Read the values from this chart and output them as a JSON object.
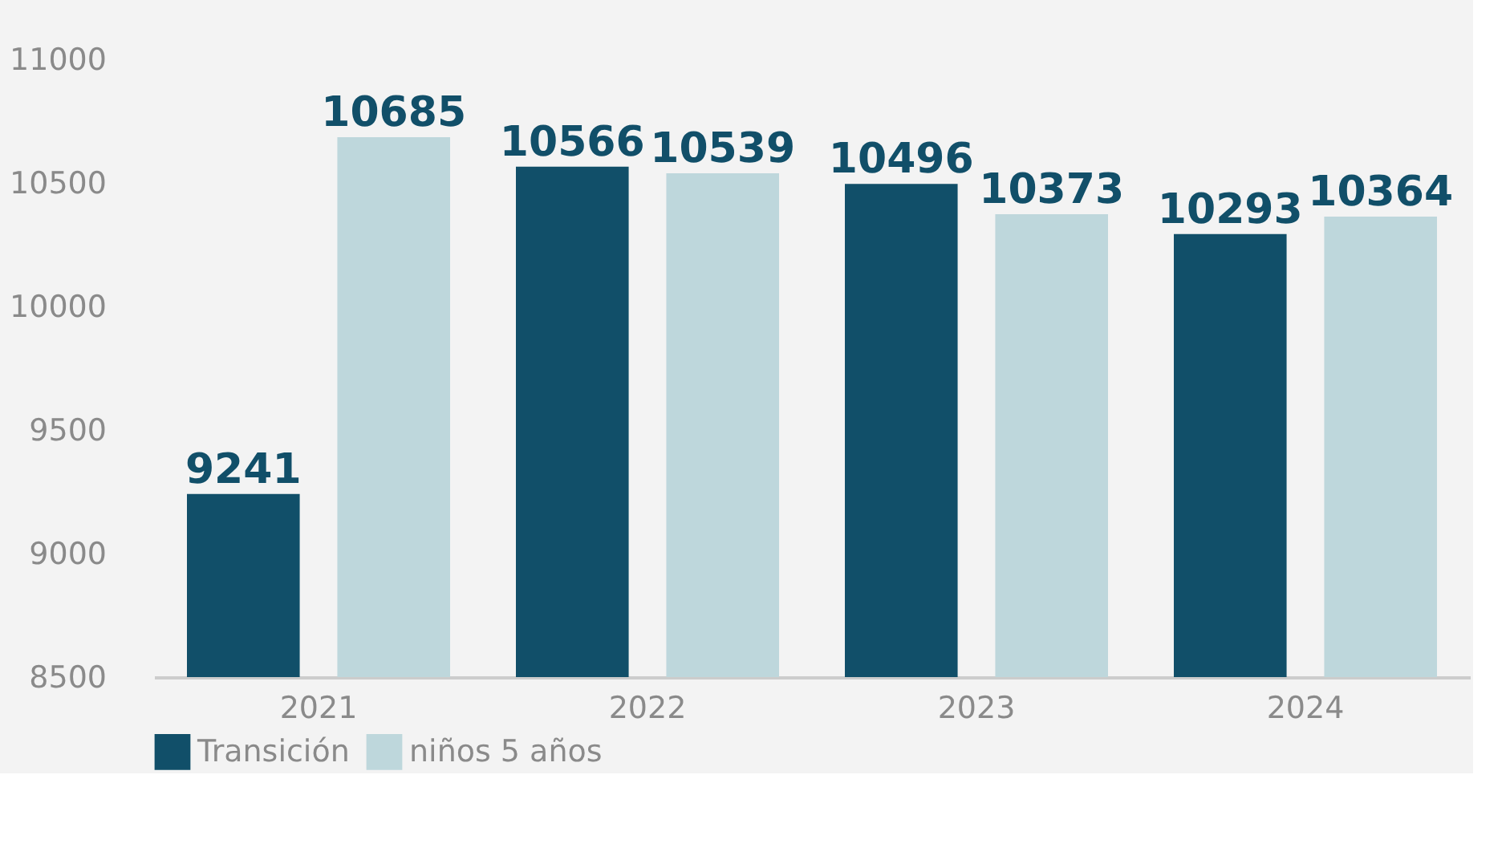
{
  "chart_data": {
    "type": "bar",
    "categories": [
      "2021",
      "2022",
      "2023",
      "2024"
    ],
    "series": [
      {
        "name": "Transición",
        "color": "#114f69",
        "values": [
          9241,
          10566,
          10496,
          10293
        ]
      },
      {
        "name": "niños 5 años",
        "color": "#bed7dc",
        "values": [
          10685,
          10539,
          10373,
          10364
        ]
      }
    ],
    "ylim": [
      8500,
      11000
    ],
    "yticks": [
      8500,
      9000,
      9500,
      10000,
      10500,
      11000
    ],
    "grid": false,
    "legend": "bottom",
    "data_labels": true
  }
}
